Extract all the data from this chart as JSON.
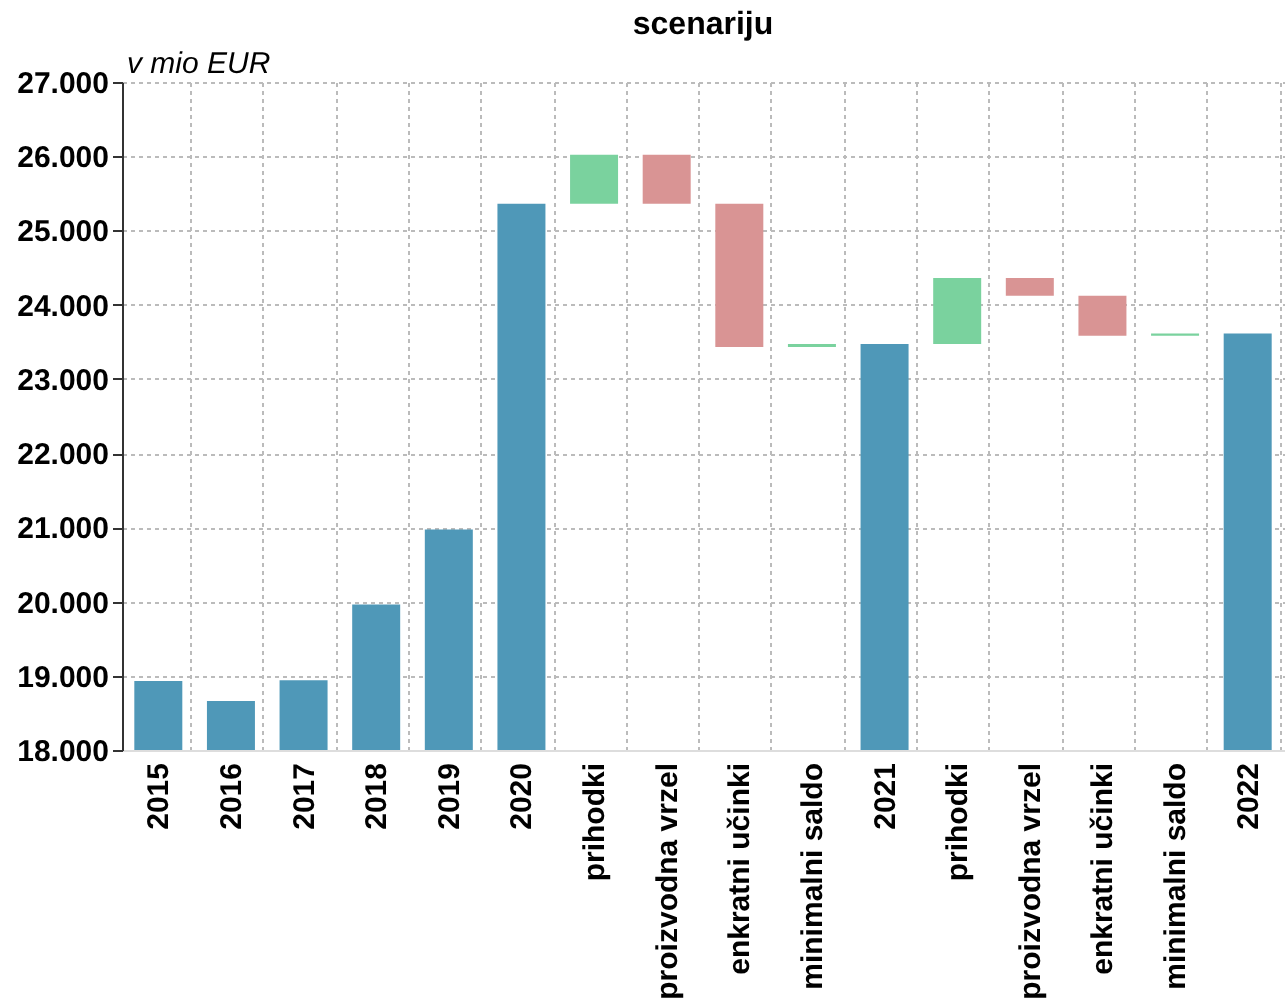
{
  "chart_data": {
    "type": "bar",
    "title": "scenariju",
    "ylabel": "v mio EUR",
    "categories": [
      "2015",
      "2016",
      "2017",
      "2018",
      "2019",
      "2020",
      "prihodki",
      "proizvodna vrzel",
      "enkratni učinki",
      "minimalni saldo",
      "2021",
      "prihodki",
      "proizvodna vrzel",
      "enkratni učinki",
      "minimalni saldo",
      "2022"
    ],
    "values": [
      930,
      660,
      940,
      1960,
      2970,
      7360,
      660,
      -660,
      -1930,
      40,
      5470,
      890,
      -240,
      -540,
      30,
      5610
    ],
    "base": [
      18000,
      18000,
      18000,
      18000,
      18000,
      18000,
      25360,
      26020,
      25360,
      23430,
      18000,
      23470,
      24360,
      24120,
      23580,
      18000
    ],
    "colors": [
      "#4f98b8",
      "#4f98b8",
      "#4f98b8",
      "#4f98b8",
      "#4f98b8",
      "#4f98b8",
      "#7ad29e",
      "#d99494",
      "#d99494",
      "#7ad29e",
      "#4f98b8",
      "#7ad29e",
      "#d99494",
      "#d99494",
      "#7ad29e",
      "#4f98b8"
    ],
    "ylim": [
      18000,
      27000
    ],
    "yticks": [
      {
        "value": 18000,
        "label": "18.000"
      },
      {
        "value": 19000,
        "label": "19.000"
      },
      {
        "value": 20000,
        "label": "20.000"
      },
      {
        "value": 21000,
        "label": "21.000"
      },
      {
        "value": 22000,
        "label": "22.000"
      },
      {
        "value": 23000,
        "label": "23.000"
      },
      {
        "value": 24000,
        "label": "24.000"
      },
      {
        "value": 25000,
        "label": "25.000"
      },
      {
        "value": 26000,
        "label": "26.000"
      },
      {
        "value": 27000,
        "label": "27.000"
      }
    ],
    "grid": true
  }
}
